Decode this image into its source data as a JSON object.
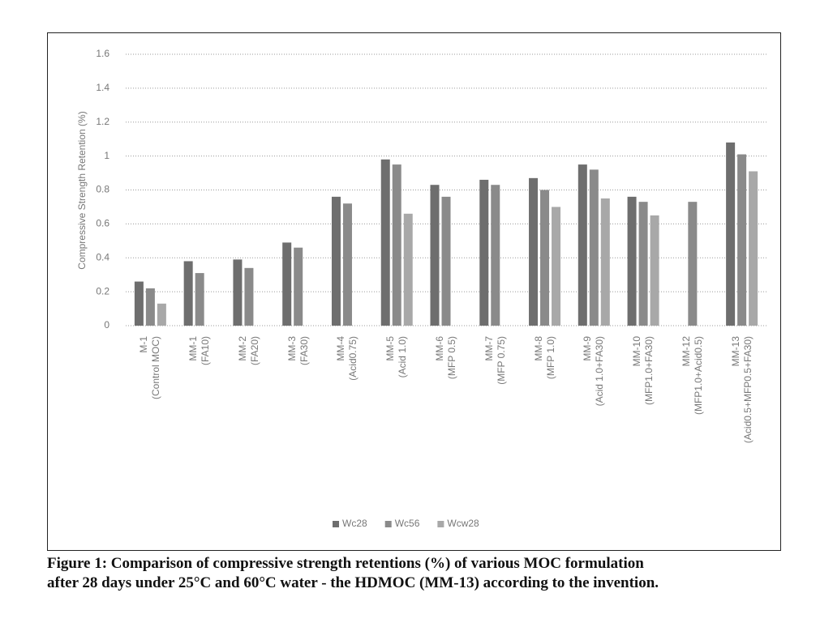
{
  "chart_data": {
    "type": "bar",
    "y_label": "Compressive Strength Retention (%)",
    "categories": [
      "M-1\n(Control MOC)",
      "MM-1\n(FA10)",
      "MM-2\n(FA20)",
      "MM-3\n(FA30)",
      "MM-4\n(Acid0.75)",
      "MM-5\n(Acid 1.0)",
      "MM-6\n(MFP 0.5)",
      "MM-7\n(MFP 0.75)",
      "MM-8\n(MFP 1.0)",
      "MM-9\n(Acid 1.0+FA30)",
      "MM-10\n(MFP1.0+FA30)",
      "MM-12\n(MFP1.0+Acid0.5)",
      "MM-13\n(Acid0.5+MFP0.5+FA30)"
    ],
    "series": [
      {
        "name": "Wc28",
        "color": "#6e6e6e",
        "values": [
          0.26,
          0.38,
          0.39,
          0.49,
          0.76,
          0.98,
          0.83,
          0.86,
          0.87,
          0.95,
          0.76,
          null,
          1.08
        ]
      },
      {
        "name": "Wc56",
        "color": "#8a8a8a",
        "values": [
          0.22,
          0.31,
          0.34,
          0.46,
          0.72,
          0.95,
          0.76,
          0.83,
          0.8,
          0.92,
          0.73,
          0.73,
          1.01
        ]
      },
      {
        "name": "Wcw28",
        "color": "#a8a8a8",
        "values": [
          0.13,
          null,
          null,
          null,
          null,
          0.66,
          null,
          null,
          0.7,
          0.75,
          0.65,
          null,
          0.91
        ]
      }
    ],
    "ylim": [
      0,
      1.6
    ],
    "yticks": [
      0,
      0.2,
      0.4,
      0.6,
      0.8,
      1,
      1.2,
      1.4,
      1.6
    ],
    "grid": true,
    "legend": "bottom"
  },
  "caption": [
    "Figure 1: Comparison of compressive strength retentions (%) of various MOC formulation",
    "after 28 days under 25°C and 60°C water - the HDMOC (MM-13) according to the invention."
  ]
}
